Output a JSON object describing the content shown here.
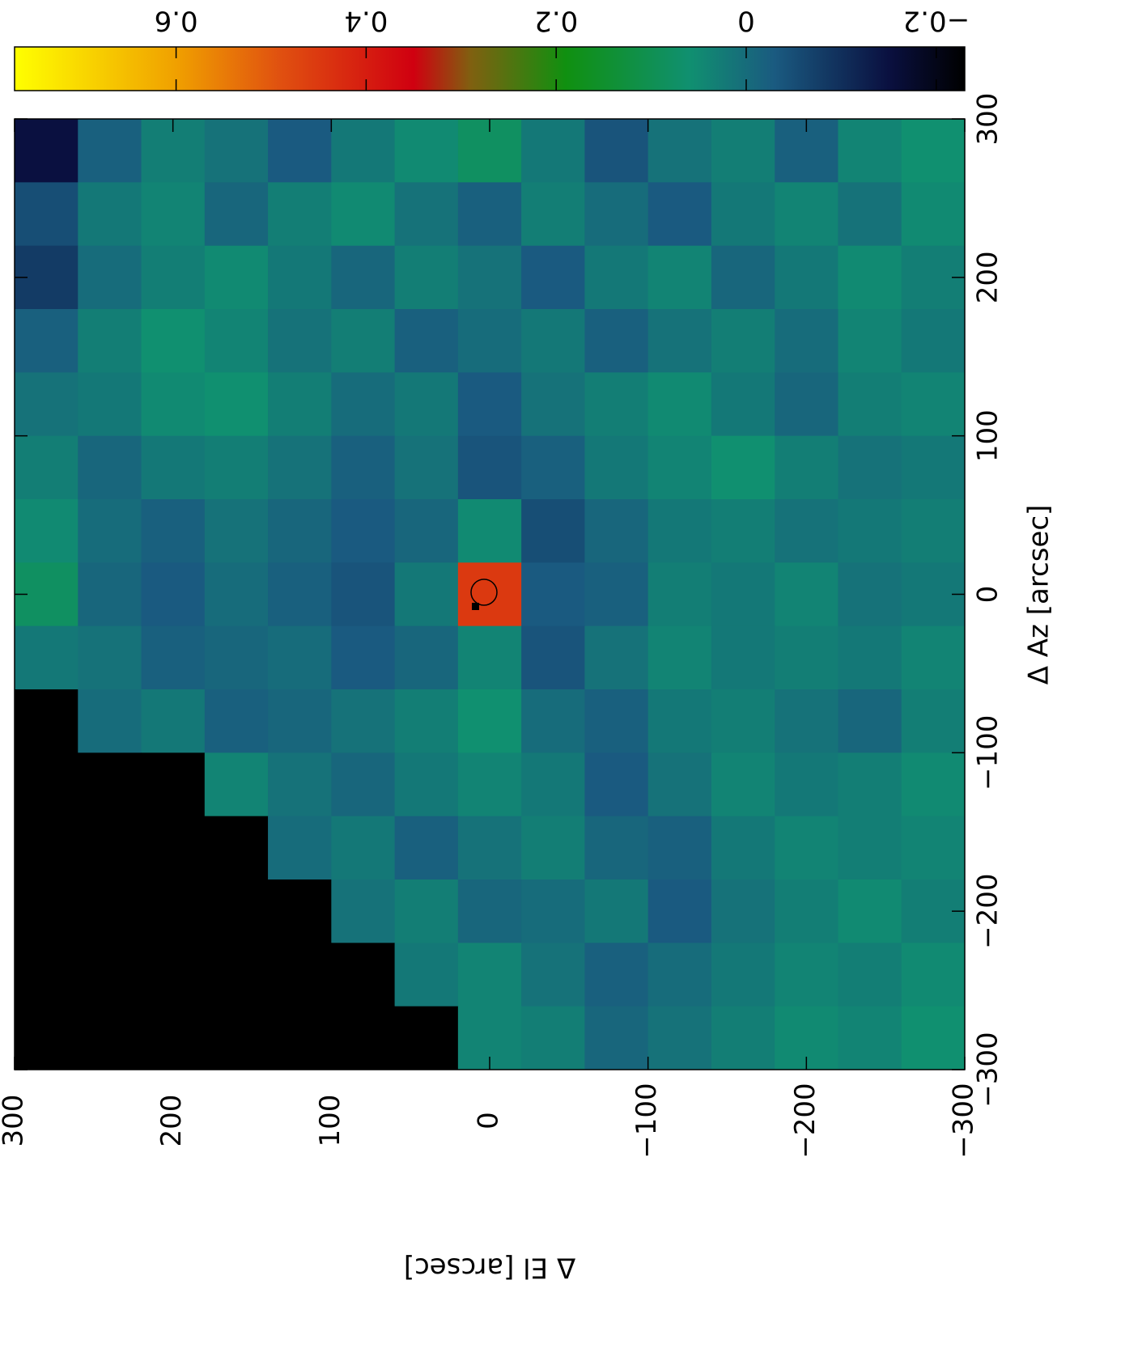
{
  "chart_data": {
    "type": "heatmap",
    "xlabel": "Δ Az [arcsec]",
    "ylabel": "Δ El [arcsec]",
    "xlim": [
      -300,
      300
    ],
    "ylim": [
      -300,
      300
    ],
    "xticks": [
      {
        "value": -300,
        "label": "−300"
      },
      {
        "value": -200,
        "label": "−200"
      },
      {
        "value": -100,
        "label": "−100"
      },
      0,
      100,
      200,
      300
    ],
    "yticks": [
      {
        "value": -300,
        "label": "−300"
      },
      {
        "value": -200,
        "label": "−200"
      },
      {
        "value": -100,
        "label": "−100"
      },
      0,
      100,
      200,
      300
    ],
    "x": [
      280,
      240,
      200,
      160,
      120,
      80,
      40,
      0,
      -40,
      -80,
      -120,
      -160,
      -200,
      -240,
      -280
    ],
    "y": [
      280,
      240,
      200,
      160,
      120,
      80,
      40,
      0,
      -40,
      -80,
      -120,
      -160,
      -200,
      -240,
      -280
    ],
    "z": [
      [
        -0.15,
        -0.02,
        0.03,
        0.01,
        -0.03,
        0.02,
        0.05,
        0.08,
        0.02,
        -0.04,
        0.01,
        0.03,
        -0.02,
        0.04,
        0.06
      ],
      [
        -0.05,
        0.02,
        0.04,
        -0.01,
        0.03,
        0.05,
        0.01,
        -0.02,
        0.03,
        0.0,
        -0.03,
        0.02,
        0.04,
        0.01,
        0.05
      ],
      [
        -0.08,
        0.0,
        0.03,
        0.05,
        0.02,
        -0.01,
        0.03,
        0.01,
        -0.03,
        0.02,
        0.04,
        -0.01,
        0.02,
        0.05,
        0.03
      ],
      [
        -0.02,
        0.03,
        0.06,
        0.04,
        0.01,
        0.03,
        -0.02,
        0.0,
        0.02,
        -0.02,
        0.01,
        0.03,
        0.0,
        0.04,
        0.02
      ],
      [
        0.01,
        0.02,
        0.05,
        0.06,
        0.03,
        0.0,
        0.02,
        -0.03,
        0.01,
        0.03,
        0.05,
        0.02,
        -0.01,
        0.03,
        0.04
      ],
      [
        0.03,
        -0.01,
        0.02,
        0.03,
        0.01,
        -0.02,
        0.01,
        -0.04,
        -0.02,
        0.02,
        0.04,
        0.06,
        0.03,
        0.01,
        0.02
      ],
      [
        0.05,
        0.0,
        -0.02,
        0.01,
        -0.01,
        -0.03,
        -0.01,
        0.05,
        -0.05,
        -0.01,
        0.02,
        0.03,
        0.01,
        0.02,
        0.03
      ],
      [
        0.08,
        -0.01,
        -0.03,
        0.0,
        -0.02,
        -0.04,
        0.02,
        0.45,
        -0.03,
        -0.02,
        0.03,
        0.02,
        0.04,
        0.01,
        0.02
      ],
      [
        0.02,
        0.01,
        -0.02,
        -0.01,
        0.0,
        -0.03,
        -0.01,
        0.04,
        -0.04,
        0.01,
        0.04,
        0.02,
        0.03,
        0.02,
        0.04
      ],
      [
        -0.23,
        0.0,
        0.02,
        -0.02,
        -0.01,
        0.01,
        0.03,
        0.06,
        0.0,
        -0.02,
        0.02,
        0.03,
        0.01,
        -0.01,
        0.03
      ],
      [
        -0.23,
        -0.23,
        -0.23,
        0.04,
        0.01,
        -0.01,
        0.02,
        0.04,
        0.02,
        -0.03,
        0.01,
        0.04,
        0.02,
        0.03,
        0.05
      ],
      [
        -0.23,
        -0.23,
        -0.23,
        -0.23,
        0.0,
        0.02,
        -0.02,
        0.01,
        0.03,
        -0.01,
        -0.02,
        0.02,
        0.04,
        0.03,
        0.04
      ],
      [
        -0.23,
        -0.23,
        -0.23,
        -0.23,
        -0.23,
        0.01,
        0.03,
        -0.01,
        0.0,
        0.02,
        -0.03,
        0.01,
        0.03,
        0.05,
        0.03
      ],
      [
        -0.23,
        -0.23,
        -0.23,
        -0.23,
        -0.23,
        -0.23,
        0.02,
        0.04,
        0.01,
        -0.02,
        0.0,
        0.02,
        0.04,
        0.03,
        0.05
      ],
      [
        -0.23,
        -0.23,
        -0.23,
        -0.23,
        -0.23,
        -0.23,
        -0.23,
        0.04,
        0.03,
        -0.01,
        0.01,
        0.03,
        0.05,
        0.04,
        0.06
      ]
    ],
    "colormap": [
      [
        -0.23,
        "#000000"
      ],
      [
        -0.15,
        "#0a1040"
      ],
      [
        -0.03,
        "#1a5a80"
      ],
      [
        0.06,
        "#109070"
      ],
      [
        0.19,
        "#109010"
      ],
      [
        0.29,
        "#806010"
      ],
      [
        0.35,
        "#d00010"
      ],
      [
        0.49,
        "#e05010"
      ],
      [
        0.6,
        "#f0a000"
      ],
      [
        0.77,
        "#ffff00"
      ]
    ],
    "colorbar": {
      "lim": [
        -0.23,
        0.77
      ],
      "ticks": [
        {
          "value": -0.2,
          "label": "−0.2"
        },
        0,
        0.2,
        0.4,
        0.6
      ]
    }
  }
}
